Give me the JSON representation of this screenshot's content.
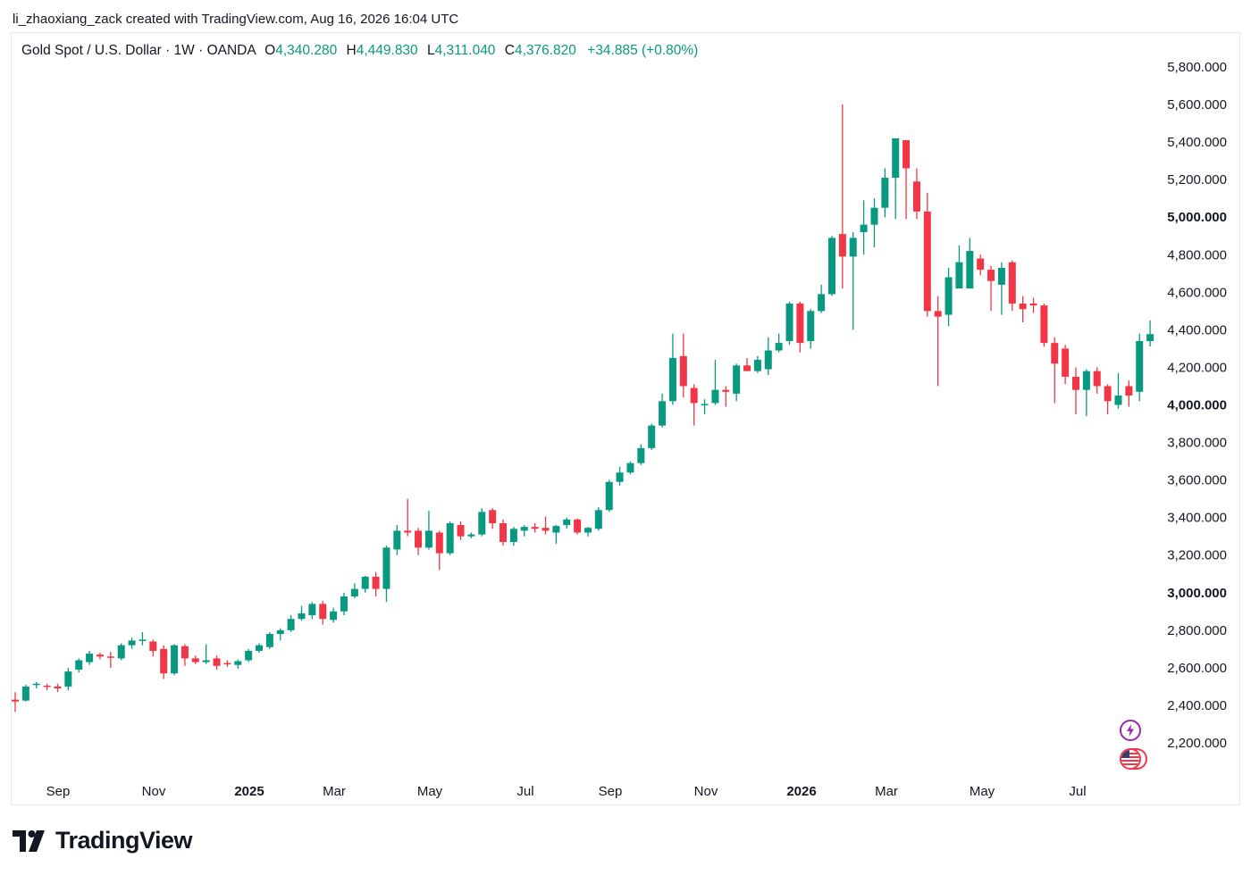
{
  "header": {
    "attribution": "li_zhaoxiang_zack created with TradingView.com, Aug 16, 2026 16:04 UTC"
  },
  "legend": {
    "symbol": "Gold Spot / U.S. Dollar · 1W · OANDA",
    "open_label": "O",
    "open": "4,340.280",
    "high_label": "H",
    "high": "4,449.830",
    "low_label": "L",
    "low": "4,311.040",
    "close_label": "C",
    "close": "4,376.820",
    "change": "+34.885 (+0.80%)"
  },
  "brand": {
    "name": "TradingView",
    "logo_icon": "tradingview-logo-icon"
  },
  "badges": {
    "lightning": "lightning-icon",
    "flag": "us-flag-icon"
  },
  "colors": {
    "up": "#089981",
    "down": "#f23645",
    "text": "#131722",
    "legend_value": "#089981",
    "badge_purple": "#9c27b0",
    "badge_red": "#f23645"
  },
  "chart_data": {
    "type": "candlestick",
    "y_range": [
      2000,
      5900
    ],
    "y_ticks": [
      "5,800.000",
      "5,600.000",
      "5,400.000",
      "5,200.000",
      "5,000.000",
      "4,800.000",
      "4,600.000",
      "4,400.000",
      "4,200.000",
      "4,000.000",
      "3,800.000",
      "3,600.000",
      "3,400.000",
      "3,200.000",
      "3,000.000",
      "2,800.000",
      "2,600.000",
      "2,400.000",
      "2,200.000"
    ],
    "y_ticks_bold": [
      "5,000.000",
      "4,000.000",
      "3,000.000"
    ],
    "x_ticks": [
      "Sep",
      "Nov",
      "2025",
      "Mar",
      "May",
      "Jul",
      "Sep",
      "Nov",
      "2026",
      "Mar",
      "May",
      "Jul"
    ],
    "x_ticks_bold": [
      "2025",
      "2026"
    ],
    "candles": [
      {
        "o": 2430,
        "h": 2470,
        "l": 2365,
        "c": 2420
      },
      {
        "o": 2425,
        "h": 2510,
        "l": 2420,
        "c": 2500
      },
      {
        "o": 2510,
        "h": 2525,
        "l": 2490,
        "c": 2515
      },
      {
        "o": 2505,
        "h": 2515,
        "l": 2480,
        "c": 2500
      },
      {
        "o": 2500,
        "h": 2515,
        "l": 2470,
        "c": 2490
      },
      {
        "o": 2500,
        "h": 2600,
        "l": 2480,
        "c": 2580
      },
      {
        "o": 2590,
        "h": 2650,
        "l": 2575,
        "c": 2640
      },
      {
        "o": 2630,
        "h": 2690,
        "l": 2615,
        "c": 2675
      },
      {
        "o": 2670,
        "h": 2680,
        "l": 2645,
        "c": 2660
      },
      {
        "o": 2660,
        "h": 2685,
        "l": 2600,
        "c": 2655
      },
      {
        "o": 2650,
        "h": 2730,
        "l": 2640,
        "c": 2720
      },
      {
        "o": 2720,
        "h": 2760,
        "l": 2700,
        "c": 2745
      },
      {
        "o": 2745,
        "h": 2790,
        "l": 2720,
        "c": 2750
      },
      {
        "o": 2740,
        "h": 2750,
        "l": 2660,
        "c": 2690
      },
      {
        "o": 2700,
        "h": 2720,
        "l": 2540,
        "c": 2570
      },
      {
        "o": 2570,
        "h": 2725,
        "l": 2560,
        "c": 2720
      },
      {
        "o": 2715,
        "h": 2725,
        "l": 2610,
        "c": 2650
      },
      {
        "o": 2650,
        "h": 2665,
        "l": 2620,
        "c": 2630
      },
      {
        "o": 2630,
        "h": 2725,
        "l": 2620,
        "c": 2640
      },
      {
        "o": 2650,
        "h": 2665,
        "l": 2590,
        "c": 2610
      },
      {
        "o": 2625,
        "h": 2640,
        "l": 2605,
        "c": 2620
      },
      {
        "o": 2615,
        "h": 2645,
        "l": 2595,
        "c": 2635
      },
      {
        "o": 2640,
        "h": 2700,
        "l": 2630,
        "c": 2690
      },
      {
        "o": 2690,
        "h": 2730,
        "l": 2680,
        "c": 2720
      },
      {
        "o": 2710,
        "h": 2790,
        "l": 2700,
        "c": 2780
      },
      {
        "o": 2780,
        "h": 2810,
        "l": 2745,
        "c": 2800
      },
      {
        "o": 2800,
        "h": 2880,
        "l": 2790,
        "c": 2860
      },
      {
        "o": 2860,
        "h": 2930,
        "l": 2850,
        "c": 2890
      },
      {
        "o": 2880,
        "h": 2950,
        "l": 2860,
        "c": 2940
      },
      {
        "o": 2940,
        "h": 2955,
        "l": 2830,
        "c": 2860
      },
      {
        "o": 2855,
        "h": 2920,
        "l": 2840,
        "c": 2900
      },
      {
        "o": 2900,
        "h": 3000,
        "l": 2880,
        "c": 2980
      },
      {
        "o": 2980,
        "h": 3050,
        "l": 2970,
        "c": 3020
      },
      {
        "o": 3020,
        "h": 3090,
        "l": 3000,
        "c": 3085
      },
      {
        "o": 3085,
        "h": 3110,
        "l": 2980,
        "c": 3020
      },
      {
        "o": 3020,
        "h": 3250,
        "l": 2950,
        "c": 3240
      },
      {
        "o": 3230,
        "h": 3360,
        "l": 3200,
        "c": 3330
      },
      {
        "o": 3330,
        "h": 3500,
        "l": 3300,
        "c": 3320
      },
      {
        "o": 3330,
        "h": 3345,
        "l": 3200,
        "c": 3240
      },
      {
        "o": 3240,
        "h": 3435,
        "l": 3230,
        "c": 3330
      },
      {
        "o": 3320,
        "h": 3330,
        "l": 3120,
        "c": 3210
      },
      {
        "o": 3210,
        "h": 3380,
        "l": 3200,
        "c": 3370
      },
      {
        "o": 3360,
        "h": 3380,
        "l": 3280,
        "c": 3300
      },
      {
        "o": 3300,
        "h": 3320,
        "l": 3290,
        "c": 3310
      },
      {
        "o": 3310,
        "h": 3450,
        "l": 3300,
        "c": 3430
      },
      {
        "o": 3440,
        "h": 3450,
        "l": 3340,
        "c": 3370
      },
      {
        "o": 3370,
        "h": 3390,
        "l": 3250,
        "c": 3270
      },
      {
        "o": 3270,
        "h": 3350,
        "l": 3250,
        "c": 3340
      },
      {
        "o": 3330,
        "h": 3360,
        "l": 3300,
        "c": 3350
      },
      {
        "o": 3350,
        "h": 3370,
        "l": 3320,
        "c": 3340
      },
      {
        "o": 3345,
        "h": 3405,
        "l": 3310,
        "c": 3330
      },
      {
        "o": 3320,
        "h": 3360,
        "l": 3260,
        "c": 3355
      },
      {
        "o": 3360,
        "h": 3400,
        "l": 3340,
        "c": 3390
      },
      {
        "o": 3390,
        "h": 3395,
        "l": 3310,
        "c": 3320
      },
      {
        "o": 3320,
        "h": 3350,
        "l": 3300,
        "c": 3345
      },
      {
        "o": 3340,
        "h": 3455,
        "l": 3330,
        "c": 3440
      },
      {
        "o": 3440,
        "h": 3600,
        "l": 3430,
        "c": 3590
      },
      {
        "o": 3590,
        "h": 3670,
        "l": 3570,
        "c": 3640
      },
      {
        "o": 3640,
        "h": 3700,
        "l": 3630,
        "c": 3690
      },
      {
        "o": 3690,
        "h": 3790,
        "l": 3680,
        "c": 3770
      },
      {
        "o": 3770,
        "h": 3900,
        "l": 3760,
        "c": 3890
      },
      {
        "o": 3890,
        "h": 4060,
        "l": 3880,
        "c": 4020
      },
      {
        "o": 4020,
        "h": 4380,
        "l": 4000,
        "c": 4250
      },
      {
        "o": 4260,
        "h": 4380,
        "l": 4040,
        "c": 4100
      },
      {
        "o": 4090,
        "h": 4110,
        "l": 3890,
        "c": 4010
      },
      {
        "o": 4000,
        "h": 4030,
        "l": 3950,
        "c": 4005
      },
      {
        "o": 4010,
        "h": 4240,
        "l": 4000,
        "c": 4080
      },
      {
        "o": 4080,
        "h": 4100,
        "l": 3990,
        "c": 4070
      },
      {
        "o": 4060,
        "h": 4220,
        "l": 4020,
        "c": 4210
      },
      {
        "o": 4210,
        "h": 4250,
        "l": 4180,
        "c": 4180
      },
      {
        "o": 4180,
        "h": 4260,
        "l": 4170,
        "c": 4240
      },
      {
        "o": 4190,
        "h": 4360,
        "l": 4160,
        "c": 4290
      },
      {
        "o": 4290,
        "h": 4380,
        "l": 4280,
        "c": 4330
      },
      {
        "o": 4340,
        "h": 4550,
        "l": 4320,
        "c": 4540
      },
      {
        "o": 4540,
        "h": 4550,
        "l": 4280,
        "c": 4330
      },
      {
        "o": 4340,
        "h": 4510,
        "l": 4300,
        "c": 4500
      },
      {
        "o": 4500,
        "h": 4640,
        "l": 4490,
        "c": 4590
      },
      {
        "o": 4590,
        "h": 4900,
        "l": 4580,
        "c": 4890
      },
      {
        "o": 4910,
        "h": 5600,
        "l": 4620,
        "c": 4790
      },
      {
        "o": 4790,
        "h": 4920,
        "l": 4400,
        "c": 4890
      },
      {
        "o": 4920,
        "h": 5090,
        "l": 4800,
        "c": 4960
      },
      {
        "o": 4960,
        "h": 5100,
        "l": 4840,
        "c": 5050
      },
      {
        "o": 5050,
        "h": 5260,
        "l": 5000,
        "c": 5210
      },
      {
        "o": 5210,
        "h": 5420,
        "l": 4990,
        "c": 5420
      },
      {
        "o": 5410,
        "h": 5380,
        "l": 4990,
        "c": 5260
      },
      {
        "o": 5190,
        "h": 5260,
        "l": 4990,
        "c": 5030
      },
      {
        "o": 5030,
        "h": 5130,
        "l": 4470,
        "c": 4500
      },
      {
        "o": 4500,
        "h": 4580,
        "l": 4100,
        "c": 4470
      },
      {
        "o": 4480,
        "h": 4730,
        "l": 4420,
        "c": 4680
      },
      {
        "o": 4620,
        "h": 4850,
        "l": 4620,
        "c": 4760
      },
      {
        "o": 4620,
        "h": 4890,
        "l": 4620,
        "c": 4820
      },
      {
        "o": 4780,
        "h": 4800,
        "l": 4690,
        "c": 4720
      },
      {
        "o": 4720,
        "h": 4740,
        "l": 4500,
        "c": 4660
      },
      {
        "o": 4640,
        "h": 4760,
        "l": 4480,
        "c": 4730
      },
      {
        "o": 4760,
        "h": 4770,
        "l": 4500,
        "c": 4540
      },
      {
        "o": 4540,
        "h": 4580,
        "l": 4440,
        "c": 4510
      },
      {
        "o": 4540,
        "h": 4570,
        "l": 4490,
        "c": 4530
      },
      {
        "o": 4530,
        "h": 4540,
        "l": 4310,
        "c": 4330
      },
      {
        "o": 4330,
        "h": 4360,
        "l": 4010,
        "c": 4220
      },
      {
        "o": 4300,
        "h": 4320,
        "l": 4110,
        "c": 4150
      },
      {
        "o": 4150,
        "h": 4200,
        "l": 3950,
        "c": 4080
      },
      {
        "o": 4080,
        "h": 4190,
        "l": 3940,
        "c": 4180
      },
      {
        "o": 4180,
        "h": 4200,
        "l": 4060,
        "c": 4100
      },
      {
        "o": 4100,
        "h": 4110,
        "l": 3950,
        "c": 4020
      },
      {
        "o": 4000,
        "h": 4170,
        "l": 3980,
        "c": 4050
      },
      {
        "o": 4100,
        "h": 4130,
        "l": 3990,
        "c": 4050
      },
      {
        "o": 4070,
        "h": 4380,
        "l": 4020,
        "c": 4340
      },
      {
        "o": 4340,
        "h": 4450,
        "l": 4311,
        "c": 4377
      }
    ]
  }
}
